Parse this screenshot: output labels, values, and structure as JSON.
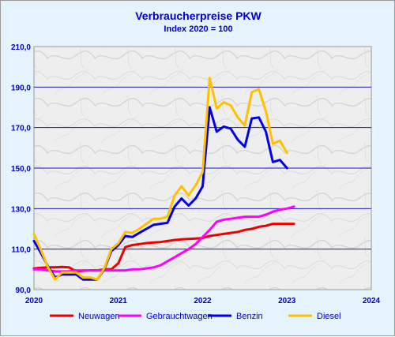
{
  "chart_data": {
    "type": "line",
    "title": "Verbraucherpreise PKW",
    "subtitle": "Index 2020 = 100",
    "xlabel": "",
    "ylabel": "",
    "xlim": [
      2020,
      2024
    ],
    "ylim": [
      90,
      210
    ],
    "x_ticks": [
      "2020",
      "2021",
      "2022",
      "2023",
      "2024"
    ],
    "y_ticks": [
      "90,0",
      "110,0",
      "130,0",
      "150,0",
      "170,0",
      "190,0",
      "210,0"
    ],
    "grid": true,
    "legend_position": "bottom",
    "x": [
      2020.0,
      2020.083,
      2020.167,
      2020.25,
      2020.333,
      2020.417,
      2020.5,
      2020.583,
      2020.667,
      2020.75,
      2020.833,
      2020.917,
      2021.0,
      2021.083,
      2021.167,
      2021.25,
      2021.333,
      2021.417,
      2021.5,
      2021.583,
      2021.667,
      2021.75,
      2021.833,
      2021.917,
      2022.0,
      2022.083,
      2022.167,
      2022.25,
      2022.333,
      2022.417,
      2022.5,
      2022.583,
      2022.667,
      2022.75,
      2022.833,
      2022.917,
      2023.0,
      2023.083
    ],
    "series": [
      {
        "name": "Neuwagen",
        "color": "#ee0000",
        "values": [
          100.5,
          100.8,
          101.0,
          101.0,
          101.2,
          101.0,
          99.0,
          99.3,
          99.5,
          99.5,
          100.0,
          100.0,
          103.0,
          111.0,
          112.0,
          112.5,
          113.0,
          113.3,
          113.5,
          114.0,
          114.5,
          114.8,
          115.0,
          115.2,
          115.5,
          116.5,
          117.0,
          117.5,
          118.0,
          118.5,
          119.5,
          120.0,
          121.0,
          121.5,
          122.5,
          122.5,
          122.5,
          122.5
        ]
      },
      {
        "name": "Gebrauchtwagen",
        "color": "#ff00ff",
        "values": [
          100.0,
          100.0,
          99.5,
          99.0,
          99.0,
          99.0,
          99.5,
          99.5,
          99.5,
          99.5,
          99.5,
          99.5,
          99.5,
          99.5,
          100.0,
          100.0,
          100.5,
          101.0,
          102.0,
          104.0,
          106.0,
          108.0,
          110.0,
          112.5,
          116.0,
          119.5,
          123.5,
          124.5,
          125.0,
          125.5,
          126.0,
          126.0,
          126.0,
          127.0,
          128.5,
          129.5,
          130.0,
          131.0
        ]
      },
      {
        "name": "Benzin",
        "color": "#0000ee",
        "values": [
          114.0,
          108.0,
          101.5,
          96.0,
          97.5,
          97.5,
          97.5,
          95.0,
          95.0,
          95.0,
          100.0,
          109.0,
          112.0,
          116.5,
          116.0,
          118.0,
          120.0,
          122.0,
          122.5,
          123.0,
          131.0,
          135.0,
          131.5,
          135.0,
          141.0,
          180.0,
          168.0,
          170.5,
          169.5,
          164.0,
          160.5,
          174.5,
          175.0,
          168.0,
          153.0,
          154.0,
          150.0,
          null
        ]
      },
      {
        "name": "Diesel",
        "color": "#ffc000",
        "values": [
          117.5,
          109.5,
          101.0,
          95.0,
          98.5,
          98.5,
          98.5,
          96.0,
          96.0,
          95.0,
          100.5,
          110.0,
          113.0,
          118.5,
          118.0,
          120.0,
          122.5,
          125.0,
          125.0,
          126.0,
          136.5,
          141.0,
          136.5,
          141.5,
          148.0,
          194.5,
          179.5,
          182.5,
          181.0,
          175.0,
          171.0,
          187.5,
          189.0,
          178.0,
          162.0,
          163.5,
          157.5,
          null
        ]
      }
    ]
  }
}
